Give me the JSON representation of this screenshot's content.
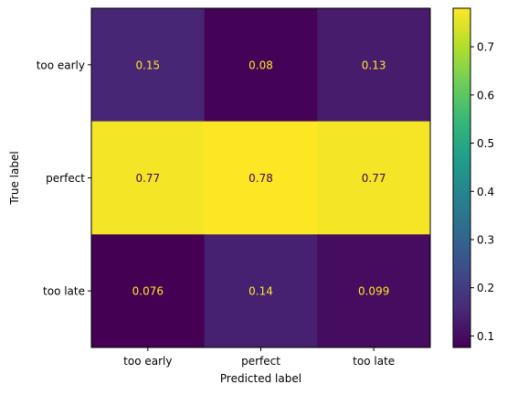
{
  "chart_data": {
    "type": "heatmap",
    "title": "",
    "xlabel": "Predicted label",
    "ylabel": "True label",
    "x_categories": [
      "too early",
      "perfect",
      "too late"
    ],
    "y_categories": [
      "too early",
      "perfect",
      "too late"
    ],
    "values": [
      [
        0.15,
        0.08,
        0.13
      ],
      [
        0.77,
        0.78,
        0.77
      ],
      [
        0.076,
        0.14,
        0.099
      ]
    ],
    "cell_labels": [
      [
        "0.15",
        "0.08",
        "0.13"
      ],
      [
        "0.77",
        "0.78",
        "0.77"
      ],
      [
        "0.076",
        "0.14",
        "0.099"
      ]
    ],
    "colormap": "viridis",
    "color_range": [
      0.076,
      0.78
    ],
    "colorbar_ticks": [
      0.1,
      0.2,
      0.3,
      0.4,
      0.5,
      0.6,
      0.7
    ],
    "colorbar_tick_labels": [
      "0.1",
      "0.2",
      "0.3",
      "0.4",
      "0.5",
      "0.6",
      "0.7"
    ],
    "text_color_light": "#fde725",
    "text_color_dark": "#440154"
  }
}
